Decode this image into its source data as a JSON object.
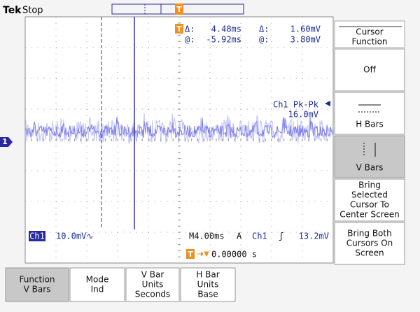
{
  "header": {
    "brand": "Tek",
    "status": "Stop"
  },
  "trigger_marker": "T",
  "channel_marker": "1",
  "readout": {
    "delta_label_1": "Δ:",
    "delta_time": "4.48ms",
    "delta_label_2": "Δ:",
    "delta_volt": "1.60mV",
    "at_label_1": "@:",
    "at_time": "-5.92ms",
    "at_label_2": "@:",
    "at_volt": "3.80mV"
  },
  "measurement": {
    "label": "Ch1 Pk-Pk",
    "value": "16.0mV"
  },
  "status_bar": {
    "channel": "Ch1",
    "scale": "10.0mV∿",
    "timebase": "M4.00ms",
    "mode": "A",
    "trigger_source": "Ch1",
    "trigger_slope": "ʃ",
    "trigger_level": "13.2mV",
    "trigger_position": "0.00000 s"
  },
  "side_menu": {
    "title": [
      "Cursor",
      "Function"
    ],
    "items": [
      [
        "Off"
      ],
      [
        "H Bars"
      ],
      [
        "V Bars"
      ],
      [
        "Bring",
        "Selected",
        "Cursor To",
        "Center Screen"
      ],
      [
        "Bring Both",
        "Cursors On",
        "Screen"
      ]
    ]
  },
  "bottom_menu": [
    [
      "Function",
      "V Bars"
    ],
    [
      "Mode",
      "Ind"
    ],
    [
      "V Bar",
      "Units",
      "Seconds"
    ],
    [
      "H Bar",
      "Units",
      "Base"
    ]
  ]
}
